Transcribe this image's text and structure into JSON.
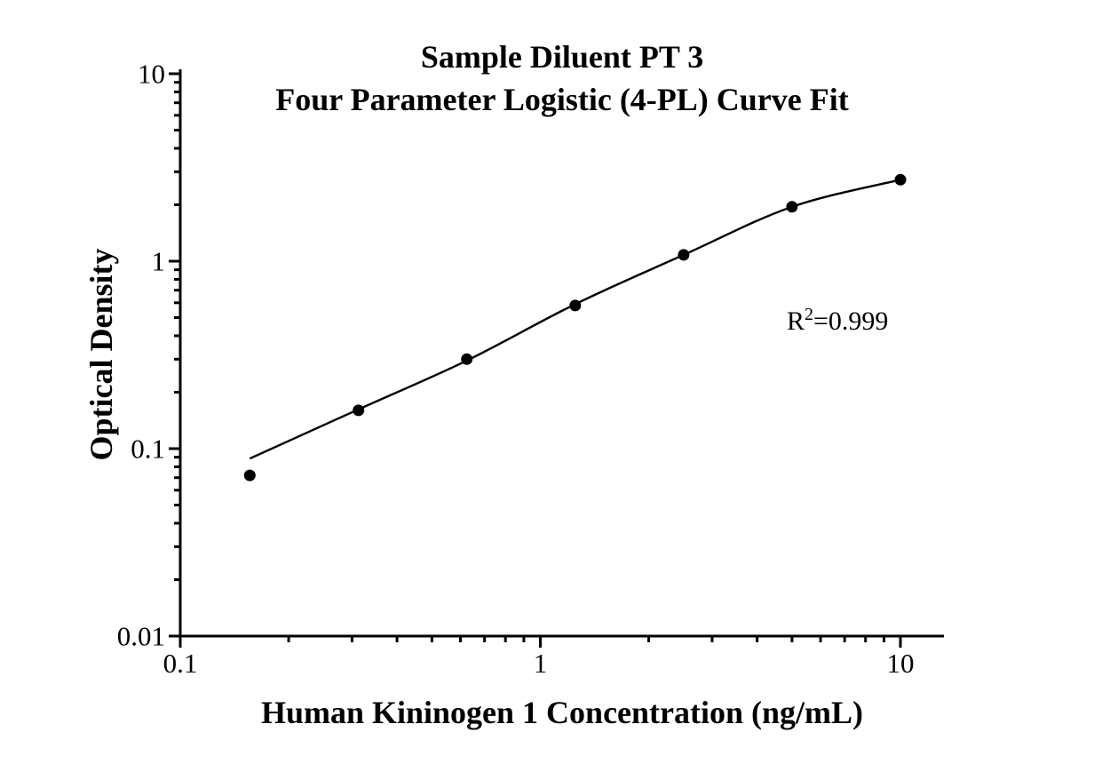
{
  "chart_data": {
    "type": "scatter",
    "title": "Sample Diluent PT 3",
    "subtitle": "Four Parameter Logistic (4-PL) Curve Fit",
    "xlabel": "Human Kininogen 1 Concentration (ng/mL)",
    "ylabel": "Optical Density",
    "x_scale": "log",
    "y_scale": "log",
    "xlim": [
      0.1,
      13
    ],
    "ylim": [
      0.01,
      10.6
    ],
    "grid": false,
    "legend": false,
    "x_ticks": [
      {
        "value": 0.1,
        "label": "0.1"
      },
      {
        "value": 1,
        "label": "1"
      },
      {
        "value": 10,
        "label": "10"
      }
    ],
    "y_ticks": [
      {
        "value": 0.01,
        "label": "0.01"
      },
      {
        "value": 0.1,
        "label": "0.1"
      },
      {
        "value": 1,
        "label": "1"
      },
      {
        "value": 10,
        "label": "10"
      }
    ],
    "series": [
      {
        "name": "standard-data-points",
        "type": "scatter",
        "points": [
          [
            0.156,
            0.072
          ],
          [
            0.3125,
            0.16
          ],
          [
            0.625,
            0.3
          ],
          [
            1.25,
            0.58
          ],
          [
            2.5,
            1.08
          ],
          [
            5,
            1.95
          ],
          [
            10,
            2.72
          ]
        ]
      },
      {
        "name": "4pl-fit-curve",
        "type": "line",
        "points": [
          [
            0.156,
            0.0885
          ],
          [
            0.3125,
            0.162
          ],
          [
            0.625,
            0.295
          ],
          [
            1.25,
            0.59
          ],
          [
            2.5,
            1.08
          ],
          [
            5,
            1.95
          ],
          [
            10,
            2.72
          ]
        ]
      }
    ],
    "annotation": {
      "text": "R2=0.999",
      "base": "R",
      "sup": "2",
      "rest": "=0.999",
      "r_squared": "0.999"
    },
    "colors": {
      "axis": "#000000",
      "marker": "#000000",
      "curve": "#000000",
      "text": "#000000",
      "background": "#ffffff"
    }
  }
}
